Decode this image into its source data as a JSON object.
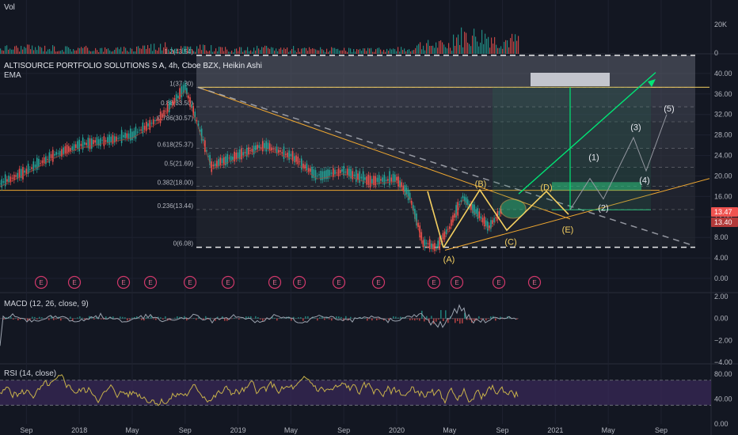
{
  "headers": {
    "vol": "Vol",
    "title": "ALTISOURCE PORTFOLIO SOLUTIONS S A, 4h, Cboe BZX, Heikin Ashi",
    "ema": "EMA",
    "macd": "MACD (12, 26, close, 9)",
    "rsi": "RSI (14, close)"
  },
  "colors": {
    "background": "#131722",
    "grid": "#1e2230",
    "axis_text": "#b2b5be",
    "candle_up": "#26a69a",
    "candle_down": "#ef5350",
    "fib_line": "#ffffff",
    "fib_box": "#787b86",
    "annotation": "#f5d061",
    "projection": "#00e676",
    "resistance": "#f0a830",
    "earnings": "#d0386a",
    "macd_line": "#9ca3af",
    "rsi_line": "#c8b24a",
    "rsi_band": "#3b2a5a",
    "price_badge_up": "#ef5350"
  },
  "chart_data": [
    {
      "type": "bar",
      "name": "volume",
      "title": "Vol",
      "y_ticks": [
        "20K",
        "0"
      ],
      "x": [
        "2017-08",
        "2017-11",
        "2018-02",
        "2018-05",
        "2018-08",
        "2018-11",
        "2019-02",
        "2019-05",
        "2019-08",
        "2019-11",
        "2020-02",
        "2020-05",
        "2020-08",
        "2020-09"
      ],
      "values": [
        4000,
        3500,
        3000,
        5000,
        4000,
        3000,
        3500,
        3000,
        2500,
        3000,
        6000,
        12000,
        9000,
        25000
      ]
    },
    {
      "type": "line",
      "name": "price",
      "title": "ALTISOURCE PORTFOLIO SOLUTIONS S A, 4h, Cboe BZX, Heikin Ashi",
      "y_ticks": [
        "40.00",
        "36.00",
        "32.00",
        "28.00",
        "24.00",
        "20.00",
        "16.00",
        "12.00",
        "8.00",
        "4.00",
        "0.00"
      ],
      "ylim": [
        -2,
        44
      ],
      "x_ticks": [
        "Sep",
        "2018",
        "May",
        "Sep",
        "2019",
        "May",
        "Sep",
        "2020",
        "May",
        "Sep",
        "2021",
        "May",
        "Sep"
      ],
      "price_path": [
        {
          "x": "2017-07",
          "y": 18.5
        },
        {
          "x": "2017-09",
          "y": 21
        },
        {
          "x": "2017-11",
          "y": 24
        },
        {
          "x": "2018-01",
          "y": 26
        },
        {
          "x": "2018-03",
          "y": 27
        },
        {
          "x": "2018-05",
          "y": 28
        },
        {
          "x": "2018-07",
          "y": 31
        },
        {
          "x": "2018-09",
          "y": 37.3
        },
        {
          "x": "2018-10",
          "y": 30
        },
        {
          "x": "2018-11",
          "y": 22
        },
        {
          "x": "2019-01",
          "y": 24
        },
        {
          "x": "2019-03",
          "y": 26
        },
        {
          "x": "2019-05",
          "y": 24
        },
        {
          "x": "2019-07",
          "y": 20
        },
        {
          "x": "2019-09",
          "y": 21
        },
        {
          "x": "2019-11",
          "y": 19
        },
        {
          "x": "2020-01",
          "y": 19.5
        },
        {
          "x": "2020-02",
          "y": 16
        },
        {
          "x": "2020-03",
          "y": 7
        },
        {
          "x": "2020-04",
          "y": 6.08
        },
        {
          "x": "2020-05",
          "y": 10
        },
        {
          "x": "2020-06",
          "y": 16
        },
        {
          "x": "2020-07",
          "y": 13
        },
        {
          "x": "2020-08",
          "y": 10
        },
        {
          "x": "2020-09",
          "y": 13.47
        }
      ],
      "fib_levels": [
        {
          "label": "1.2(43.54)",
          "value": 43.54
        },
        {
          "label": "1(37.30)",
          "value": 37.3
        },
        {
          "label": "0.88(33.50)",
          "value": 33.5
        },
        {
          "label": "0.786(30.57)",
          "value": 30.57
        },
        {
          "label": "0.618(25.37)",
          "value": 25.37
        },
        {
          "label": "0.5(21.69)",
          "value": 21.69
        },
        {
          "label": "0.382(18.00)",
          "value": 18.0
        },
        {
          "label": "0.236(13.44)",
          "value": 13.44
        },
        {
          "label": "0(6.08)",
          "value": 6.08
        }
      ],
      "wave_labels": [
        {
          "label": "(A)",
          "x": "2020-04",
          "y": 3.8
        },
        {
          "label": "(B)",
          "x": "2020-06",
          "y": 18.5
        },
        {
          "label": "(C)",
          "x": "2020-08",
          "y": 7.2
        },
        {
          "label": "(D)",
          "x": "2020-11",
          "y": 17.8
        },
        {
          "label": "(E)",
          "x": "2020-12",
          "y": 9.6
        },
        {
          "label": "(1)",
          "x": "2021-03",
          "y": 23.7
        },
        {
          "label": "(2)",
          "x": "2021-04",
          "y": 13.8
        },
        {
          "label": "(3)",
          "x": "2021-06",
          "y": 29.6
        },
        {
          "label": "(4)",
          "x": "2021-08",
          "y": 19.2
        },
        {
          "label": "(5)",
          "x": "2021-09",
          "y": 33.2
        }
      ],
      "earnings_label": "E",
      "earnings_count": 15,
      "last_price": "13.47",
      "second_price": "13.40"
    },
    {
      "type": "line",
      "name": "macd",
      "title": "MACD (12, 26, close, 9)",
      "y_ticks": [
        "2.00",
        "0.00",
        "−2.00",
        "−4.00"
      ],
      "ylim": [
        -4,
        2
      ]
    },
    {
      "type": "line",
      "name": "rsi",
      "title": "RSI (14, close)",
      "y_ticks": [
        "80.00",
        "40.00",
        "0.00"
      ],
      "ylim": [
        0,
        90
      ],
      "band": [
        30,
        70
      ]
    }
  ]
}
